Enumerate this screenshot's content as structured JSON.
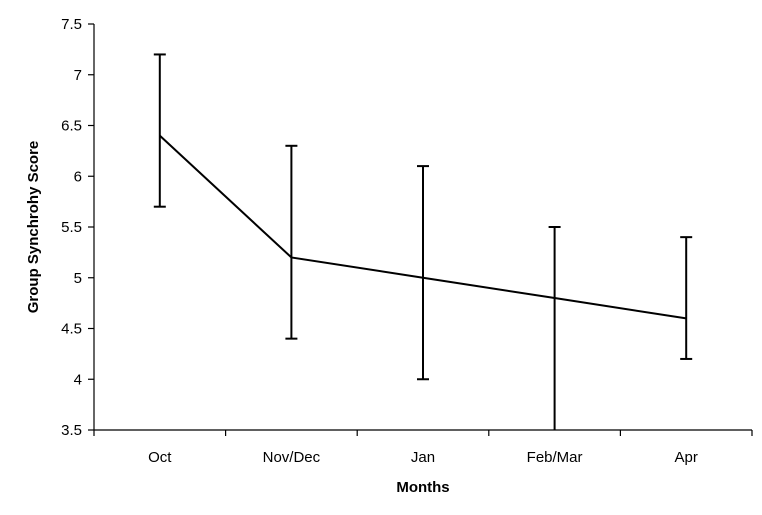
{
  "chart_data": {
    "type": "line",
    "title": "",
    "xlabel": "Months",
    "ylabel": "Group Synchrohy Score",
    "categories": [
      "Oct",
      "Nov/Dec",
      "Jan",
      "Feb/Mar",
      "Apr"
    ],
    "series": [
      {
        "values": [
          6.4,
          5.2,
          5.0,
          4.8,
          4.6
        ],
        "error_low": [
          5.7,
          4.4,
          4.0,
          3.5,
          4.2
        ],
        "error_high": [
          7.2,
          6.3,
          6.1,
          5.5,
          5.4
        ],
        "color": "#000000"
      }
    ],
    "ylim": [
      3.5,
      7.5
    ],
    "yticks": [
      "3.5",
      "4",
      "4.5",
      "5",
      "5.5",
      "6",
      "6.5",
      "7",
      "7.5"
    ],
    "grid": false,
    "legend": "none"
  }
}
